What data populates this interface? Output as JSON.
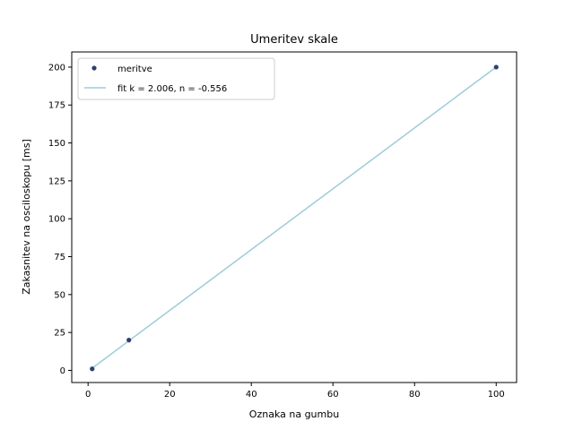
{
  "chart_data": {
    "type": "scatter",
    "title": "Umeritev skale",
    "xlabel": "Oznaka na gumbu",
    "ylabel": "Zakasnitev na osciloskopu [ms]",
    "xlim": [
      -4.0,
      105.0
    ],
    "ylim": [
      -8.0,
      210.0
    ],
    "xticks": [
      0,
      20,
      40,
      60,
      80,
      100
    ],
    "yticks": [
      0,
      25,
      50,
      75,
      100,
      125,
      150,
      175,
      200
    ],
    "grid": false,
    "legend_position": "top-left",
    "series": [
      {
        "name": "meritve",
        "kind": "scatter",
        "color": "#2f3e6e",
        "x": [
          1,
          10,
          100
        ],
        "y": [
          1,
          20,
          200
        ]
      },
      {
        "name": "fit k = 2.006, n = -0.556",
        "kind": "line",
        "color": "#9ecbdb",
        "x": [
          1,
          100
        ],
        "y": [
          1.45,
          200.04
        ]
      }
    ]
  }
}
